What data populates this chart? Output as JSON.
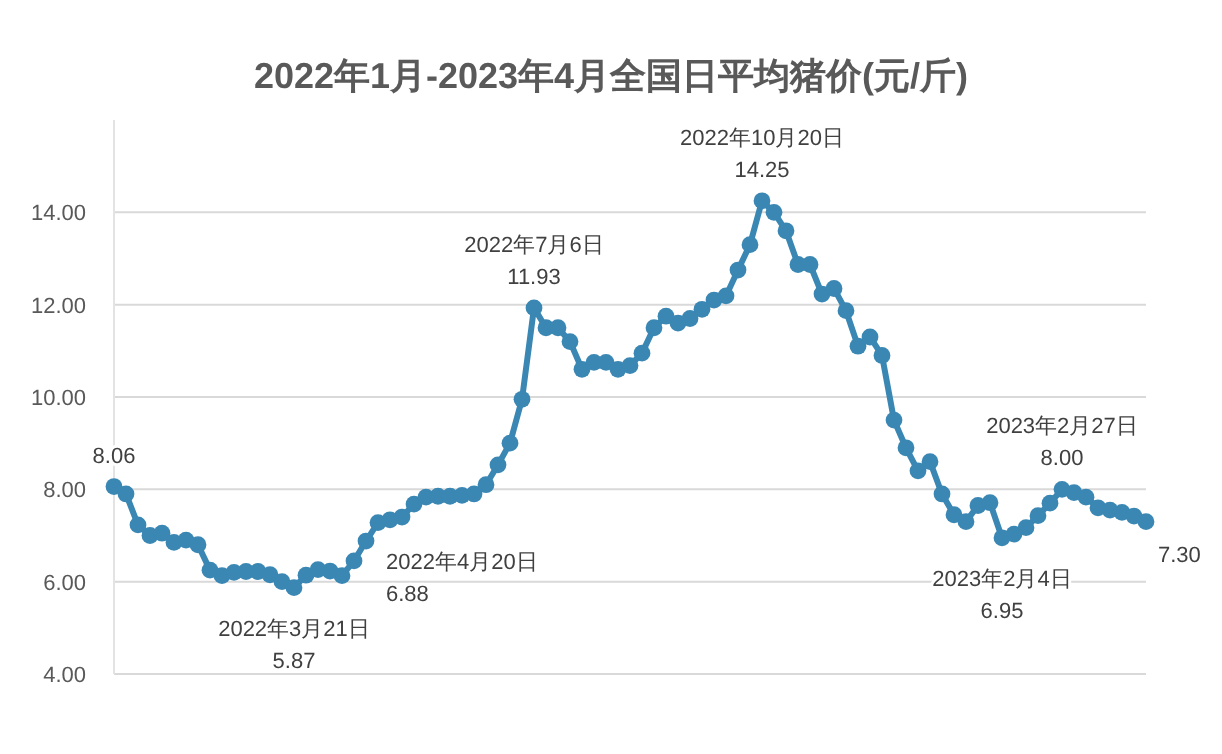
{
  "chart_data": {
    "type": "line",
    "title": "2022年1月-2023年4月全国日平均猪价(元/斤)",
    "categories": [
      null,
      null,
      null,
      null,
      null,
      null,
      null,
      null,
      null,
      null,
      null,
      null,
      null,
      null,
      null,
      null,
      null,
      null,
      null,
      null,
      null,
      null,
      null,
      null,
      null,
      null,
      null,
      null,
      null,
      null,
      null,
      null,
      null,
      null,
      null,
      null,
      null,
      null,
      null,
      null,
      null,
      null,
      null,
      null,
      null,
      null,
      null,
      null,
      null,
      null,
      null,
      null,
      null,
      null,
      null,
      null,
      null,
      null,
      null,
      null,
      null,
      null,
      null,
      null,
      null,
      null,
      null,
      null,
      null,
      null,
      null,
      null,
      null,
      null,
      null,
      null,
      null,
      null,
      null,
      null,
      null,
      null,
      null,
      null,
      null,
      null,
      null
    ],
    "ylim": [
      4,
      16
    ],
    "yticks": [
      {
        "value": 4,
        "label": "4.00"
      },
      {
        "value": 6,
        "label": "6.00"
      },
      {
        "value": 8,
        "label": "8.00"
      },
      {
        "value": 10,
        "label": "10.00"
      },
      {
        "value": 12,
        "label": "12.00"
      },
      {
        "value": 14,
        "label": "14.00"
      }
    ],
    "tick_labels": "y",
    "grid": "y",
    "marker": "circle",
    "series": [
      {
        "color": "#3a87b4",
        "values": [
          8.06,
          7.9,
          7.23,
          7.0,
          7.05,
          6.85,
          6.9,
          6.8,
          6.25,
          6.13,
          6.2,
          6.22,
          6.22,
          6.15,
          6.0,
          5.87,
          6.14,
          6.26,
          6.23,
          6.13,
          6.45,
          6.88,
          7.28,
          7.34,
          7.4,
          7.68,
          7.83,
          7.85,
          7.85,
          7.87,
          7.9,
          8.1,
          8.53,
          9.0,
          9.95,
          11.93,
          11.5,
          11.5,
          11.2,
          10.6,
          10.75,
          10.75,
          10.6,
          10.68,
          10.95,
          11.5,
          11.75,
          11.6,
          11.7,
          11.9,
          12.1,
          12.19,
          12.75,
          13.3,
          14.25,
          14.0,
          13.6,
          12.87,
          12.87,
          12.23,
          12.35,
          11.87,
          11.1,
          11.3,
          10.9,
          9.5,
          8.9,
          8.4,
          8.6,
          7.9,
          7.45,
          7.3,
          7.65,
          7.71,
          6.95,
          7.03,
          7.17,
          7.43,
          7.7,
          8.0,
          7.93,
          7.83,
          7.6,
          7.55,
          7.5,
          7.42,
          7.3
        ],
        "value_labels": [
          "8.06",
          null,
          null,
          null,
          null,
          null,
          null,
          null,
          null,
          null,
          null,
          null,
          null,
          null,
          null,
          "2022年3月21日\n5.87",
          null,
          null,
          null,
          null,
          null,
          "2022年4月20日\n6.88",
          null,
          null,
          null,
          null,
          null,
          null,
          null,
          null,
          null,
          null,
          null,
          null,
          null,
          "2022年7月6日\n11.93",
          null,
          null,
          null,
          null,
          null,
          null,
          null,
          null,
          null,
          null,
          null,
          null,
          null,
          null,
          null,
          null,
          null,
          null,
          "2022年10月20日\n14.25",
          null,
          null,
          null,
          null,
          null,
          null,
          null,
          null,
          null,
          null,
          null,
          null,
          null,
          null,
          null,
          null,
          null,
          null,
          null,
          "2023年2月4日\n6.95",
          null,
          null,
          null,
          null,
          "2023年2月27日\n8.00",
          null,
          null,
          null,
          null,
          null,
          null,
          "7.30"
        ]
      }
    ]
  }
}
